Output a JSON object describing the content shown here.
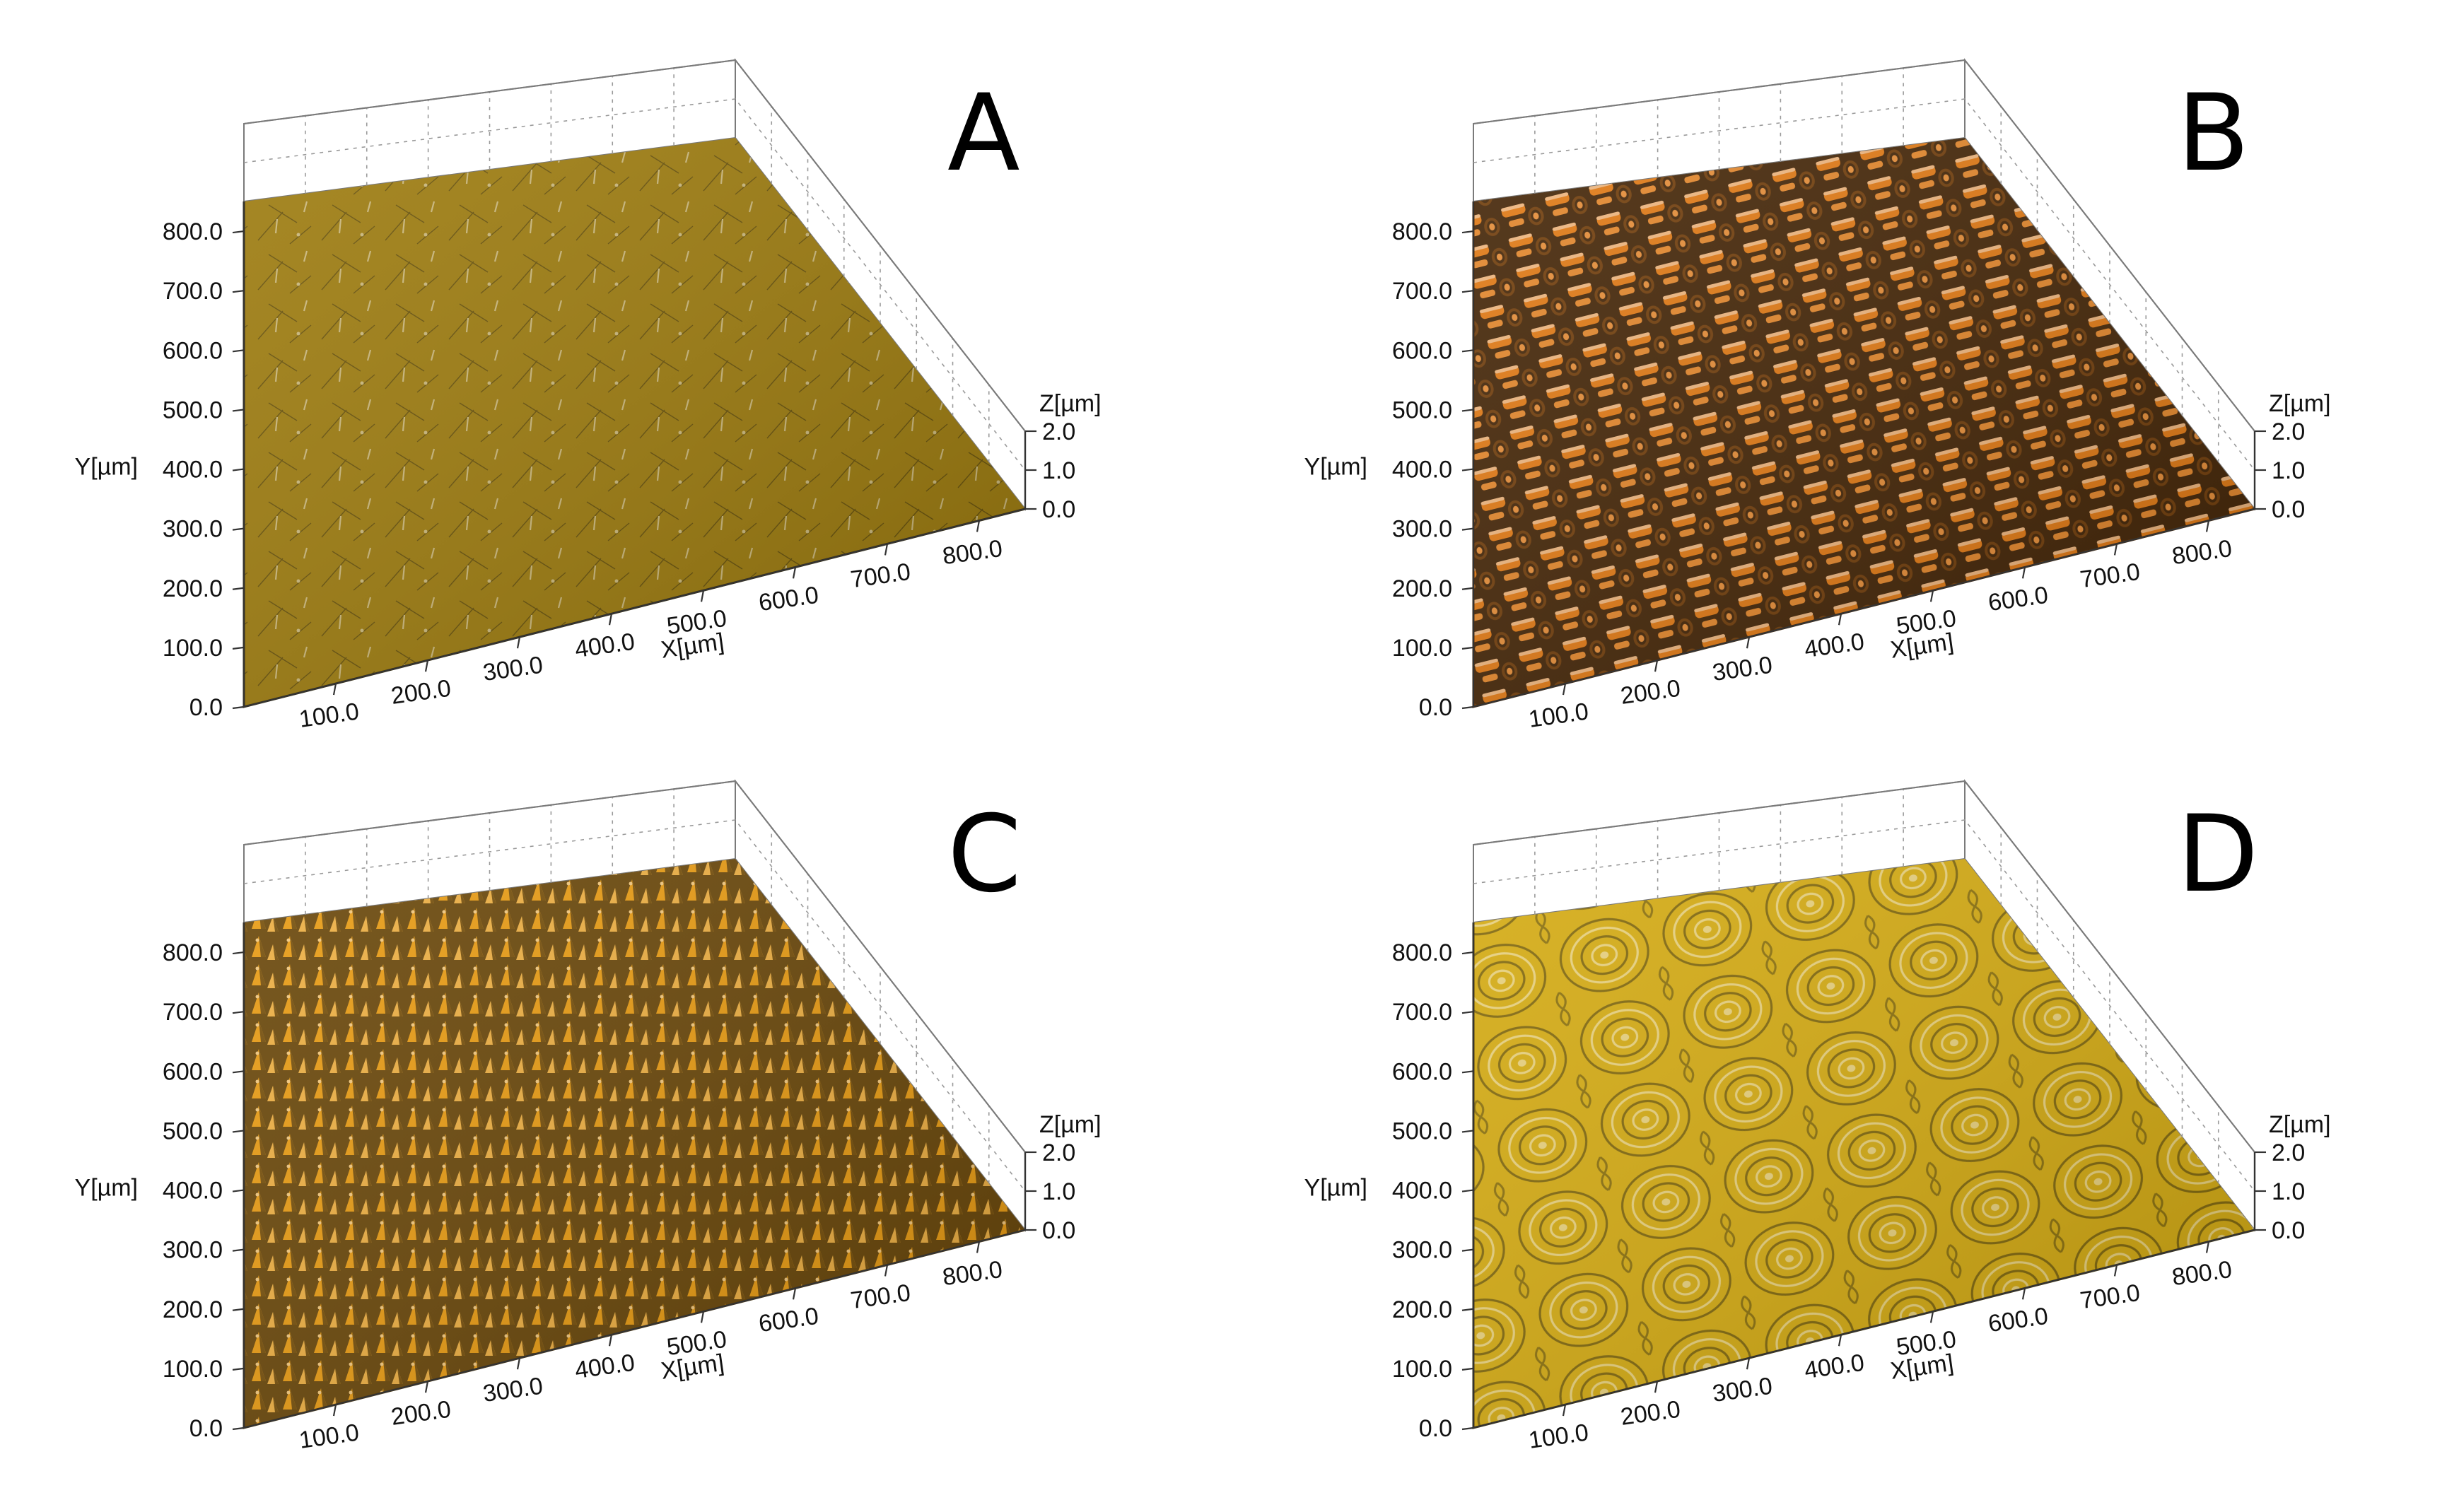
{
  "chart_data": [
    {
      "type": "surface3d",
      "panel_label": "A",
      "xlabel": "X[µm]",
      "ylabel": "Y[µm]",
      "zlabel": "Z[µm]",
      "x_ticks": [
        "100.0",
        "200.0",
        "300.0",
        "400.0",
        "500.0",
        "600.0",
        "700.0",
        "800.0"
      ],
      "y_ticks": [
        "0.0",
        "100.0",
        "200.0",
        "300.0",
        "400.0",
        "500.0",
        "600.0",
        "700.0",
        "800.0"
      ],
      "z_ticks": [
        "0.0",
        "1.0",
        "2.0"
      ],
      "xlim": [
        0,
        850
      ],
      "ylim": [
        0,
        850
      ],
      "zlim": [
        0,
        2
      ],
      "surface": "nearly flat with fine scratches",
      "surface_color": "#9c7a0c",
      "texture": "flat"
    },
    {
      "type": "surface3d",
      "panel_label": "B",
      "xlabel": "X[µm]",
      "ylabel": "Y[µm]",
      "zlabel": "Z[µm]",
      "x_ticks": [
        "100.0",
        "200.0",
        "300.0",
        "400.0",
        "500.0",
        "600.0",
        "700.0",
        "800.0"
      ],
      "y_ticks": [
        "0.0",
        "100.0",
        "200.0",
        "300.0",
        "400.0",
        "500.0",
        "600.0",
        "700.0",
        "800.0"
      ],
      "z_ticks": [
        "0.0",
        "1.0",
        "2.0"
      ],
      "xlim": [
        0,
        850
      ],
      "ylim": [
        0,
        850
      ],
      "zlim": [
        0,
        2
      ],
      "surface": "periodic raised ridges in diagonal rows",
      "surface_color": "#e07812",
      "texture": "ridges"
    },
    {
      "type": "surface3d",
      "panel_label": "C",
      "xlabel": "X[µm]",
      "ylabel": "Y[µm]",
      "zlabel": "Z[µm]",
      "x_ticks": [
        "100.0",
        "200.0",
        "300.0",
        "400.0",
        "500.0",
        "600.0",
        "700.0",
        "800.0"
      ],
      "y_ticks": [
        "0.0",
        "100.0",
        "200.0",
        "300.0",
        "400.0",
        "500.0",
        "600.0",
        "700.0",
        "800.0"
      ],
      "z_ticks": [
        "0.0",
        "1.0",
        "2.0"
      ],
      "xlim": [
        0,
        850
      ],
      "ylim": [
        0,
        850
      ],
      "zlim": [
        0,
        2
      ],
      "surface": "dense field of pointed bumps",
      "surface_color": "#e89a10",
      "texture": "bumps"
    },
    {
      "type": "surface3d",
      "panel_label": "D",
      "xlabel": "X[µm]",
      "ylabel": "Y[µm]",
      "zlabel": "Z[µm]",
      "x_ticks": [
        "100.0",
        "200.0",
        "300.0",
        "400.0",
        "500.0",
        "600.0",
        "700.0",
        "800.0"
      ],
      "y_ticks": [
        "0.0",
        "100.0",
        "200.0",
        "300.0",
        "400.0",
        "500.0",
        "600.0",
        "700.0",
        "800.0"
      ],
      "z_ticks": [
        "0.0",
        "1.0",
        "2.0"
      ],
      "xlim": [
        0,
        850
      ],
      "ylim": [
        0,
        850
      ],
      "zlim": [
        0,
        2
      ],
      "surface": "concentric ring pattern",
      "surface_color": "#d4aa10",
      "texture": "rings"
    }
  ]
}
